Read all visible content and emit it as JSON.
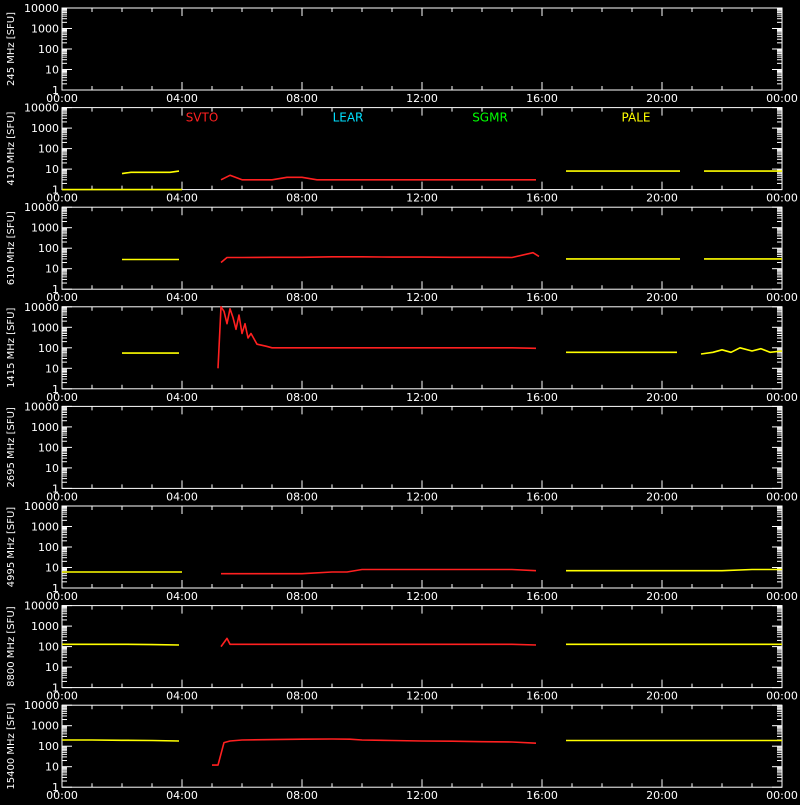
{
  "chart_data": {
    "type": "line",
    "y_scale": "log",
    "x_tick_labels": [
      "00:00",
      "04:00",
      "08:00",
      "12:00",
      "16:00",
      "20:00",
      "00:00"
    ],
    "x_range_hours": [
      0,
      24
    ],
    "y_tick_labels": [
      "10000",
      "1000",
      "100",
      "10",
      "1"
    ],
    "ylim": [
      1,
      10000
    ],
    "stations": [
      {
        "name": "SVTO",
        "color": "#ff2020"
      },
      {
        "name": "LEAR",
        "color": "#00e0ff"
      },
      {
        "name": "SGMR",
        "color": "#00ff00"
      },
      {
        "name": "PALE",
        "color": "#ffff00"
      }
    ],
    "panels": [
      {
        "ylabel": "245 MHz [SFU]",
        "series": []
      },
      {
        "ylabel": "410 MHz [SFU]",
        "show_legend": true,
        "series": [
          {
            "station": "PALE",
            "x": [
              0.0,
              4.0
            ],
            "y": [
              1,
              1
            ]
          },
          {
            "station": "PALE",
            "x": [
              2.0,
              2.3,
              2.7,
              3.2,
              3.6,
              3.9
            ],
            "y": [
              6,
              7,
              7,
              7,
              7,
              8
            ]
          },
          {
            "station": "SVTO",
            "x": [
              5.3,
              5.6,
              6.0,
              6.5,
              7.0,
              7.5,
              8.0,
              8.5,
              9.0,
              9.5,
              10.0,
              11.0,
              12.0,
              13.0,
              14.0,
              15.0,
              15.8
            ],
            "y": [
              3,
              5,
              3,
              3,
              3,
              4,
              4,
              3,
              3,
              3,
              3,
              3,
              3,
              3,
              3,
              3,
              3
            ]
          },
          {
            "station": "PALE",
            "x": [
              16.8,
              17.3,
              18.0,
              18.5,
              19.0,
              19.5,
              20.0,
              20.6
            ],
            "y": [
              8,
              8,
              8,
              8,
              8,
              8,
              8,
              8
            ]
          },
          {
            "station": "PALE",
            "x": [
              21.4,
              22.0,
              22.5,
              23.0,
              23.5,
              24.0
            ],
            "y": [
              8,
              8,
              8,
              8,
              8,
              8
            ]
          }
        ]
      },
      {
        "ylabel": "610 MHz [SFU]",
        "series": [
          {
            "station": "PALE",
            "x": [
              2.0,
              2.5,
              3.0,
              3.5,
              3.9
            ],
            "y": [
              28,
              28,
              28,
              28,
              28
            ]
          },
          {
            "station": "SVTO",
            "x": [
              5.3,
              5.5,
              6.0,
              7.0,
              8.0,
              9.0,
              10.0,
              11.0,
              12.0,
              13.0,
              14.0,
              15.0,
              15.7,
              15.9
            ],
            "y": [
              20,
              35,
              35,
              36,
              36,
              38,
              38,
              37,
              37,
              36,
              36,
              35,
              60,
              40
            ]
          },
          {
            "station": "PALE",
            "x": [
              16.8,
              17.0,
              17.5,
              18.0,
              18.5,
              19.0,
              19.5,
              20.0,
              20.6
            ],
            "y": [
              30,
              30,
              30,
              30,
              30,
              30,
              30,
              30,
              30
            ]
          },
          {
            "station": "PALE",
            "x": [
              21.4,
              22.0,
              22.5,
              23.0,
              23.5,
              24.0
            ],
            "y": [
              30,
              30,
              30,
              30,
              30,
              30
            ]
          }
        ]
      },
      {
        "ylabel": "1415 MHz [SFU]",
        "series": [
          {
            "station": "PALE",
            "x": [
              2.0,
              2.5,
              3.0,
              3.5,
              3.9
            ],
            "y": [
              55,
              55,
              55,
              55,
              55
            ]
          },
          {
            "station": "SVTO",
            "x": [
              5.2,
              5.3,
              5.4,
              5.5,
              5.6,
              5.7,
              5.8,
              5.9,
              6.0,
              6.1,
              6.2,
              6.3,
              6.5,
              6.8,
              7.0,
              8.0,
              9.0,
              10.0,
              11.0,
              12.0,
              13.0,
              14.0,
              15.0,
              15.8
            ],
            "y": [
              10,
              10000,
              6000,
              1500,
              8000,
              3000,
              800,
              4000,
              500,
              1500,
              300,
              500,
              150,
              120,
              100,
              100,
              100,
              100,
              100,
              100,
              100,
              100,
              100,
              95
            ]
          },
          {
            "station": "PALE",
            "x": [
              16.8,
              17.0,
              17.5,
              18.0,
              18.5,
              19.0,
              19.5,
              20.0,
              20.5
            ],
            "y": [
              60,
              60,
              60,
              60,
              60,
              60,
              60,
              60,
              60
            ]
          },
          {
            "station": "PALE",
            "x": [
              21.3,
              21.7,
              22.0,
              22.3,
              22.6,
              23.0,
              23.3,
              23.6,
              24.0
            ],
            "y": [
              50,
              60,
              80,
              60,
              100,
              70,
              90,
              60,
              70
            ]
          }
        ]
      },
      {
        "ylabel": "2695 MHz [SFU]",
        "series": []
      },
      {
        "ylabel": "4995 MHz [SFU]",
        "series": [
          {
            "station": "PALE",
            "x": [
              0.0,
              1.0,
              2.0,
              3.0,
              4.0
            ],
            "y": [
              6,
              6,
              6,
              6,
              6
            ]
          },
          {
            "station": "SVTO",
            "x": [
              5.3,
              6.0,
              7.0,
              8.0,
              9.0,
              9.5,
              10.0,
              11.0,
              12.0,
              13.0,
              14.0,
              15.0,
              15.8
            ],
            "y": [
              5,
              5,
              5,
              5,
              6,
              6,
              8,
              8,
              8,
              8,
              8,
              8,
              7
            ]
          },
          {
            "station": "PALE",
            "x": [
              16.8,
              18.0,
              19.0,
              20.0,
              21.0,
              22.0,
              23.0,
              24.0
            ],
            "y": [
              7,
              7,
              7,
              7,
              7,
              7,
              8,
              8
            ]
          }
        ]
      },
      {
        "ylabel": "8800 MHz [SFU]",
        "series": [
          {
            "station": "PALE",
            "x": [
              0.0,
              1.0,
              2.0,
              3.0,
              3.9
            ],
            "y": [
              130,
              130,
              130,
              125,
              120
            ]
          },
          {
            "station": "SVTO",
            "x": [
              5.3,
              5.5,
              5.6,
              6.0,
              7.0,
              8.0,
              9.0,
              10.0,
              11.0,
              12.0,
              13.0,
              14.0,
              15.0,
              15.8
            ],
            "y": [
              100,
              250,
              130,
              130,
              130,
              130,
              130,
              130,
              130,
              130,
              130,
              130,
              130,
              120
            ]
          },
          {
            "station": "PALE",
            "x": [
              16.8,
              18.0,
              19.0,
              20.0,
              21.0,
              22.0,
              23.0,
              24.0
            ],
            "y": [
              130,
              130,
              130,
              130,
              130,
              130,
              130,
              130
            ]
          }
        ]
      },
      {
        "ylabel": "15400 MHz [SFU]",
        "series": [
          {
            "station": "PALE",
            "x": [
              0.0,
              1.0,
              2.0,
              3.0,
              3.9
            ],
            "y": [
              200,
              200,
              195,
              190,
              180
            ]
          },
          {
            "station": "SVTO",
            "x": [
              5.0,
              5.2,
              5.4,
              5.6,
              6.0,
              7.0,
              8.0,
              9.0,
              9.6,
              10.0,
              11.0,
              12.0,
              13.0,
              14.0,
              15.0,
              15.8
            ],
            "y": [
              12,
              12,
              150,
              180,
              200,
              210,
              220,
              225,
              220,
              200,
              190,
              180,
              175,
              165,
              160,
              140
            ]
          },
          {
            "station": "PALE",
            "x": [
              16.8,
              18.0,
              19.0,
              20.0,
              21.0,
              22.0,
              23.0,
              24.0
            ],
            "y": [
              190,
              190,
              190,
              190,
              190,
              190,
              190,
              190
            ]
          }
        ]
      }
    ]
  }
}
